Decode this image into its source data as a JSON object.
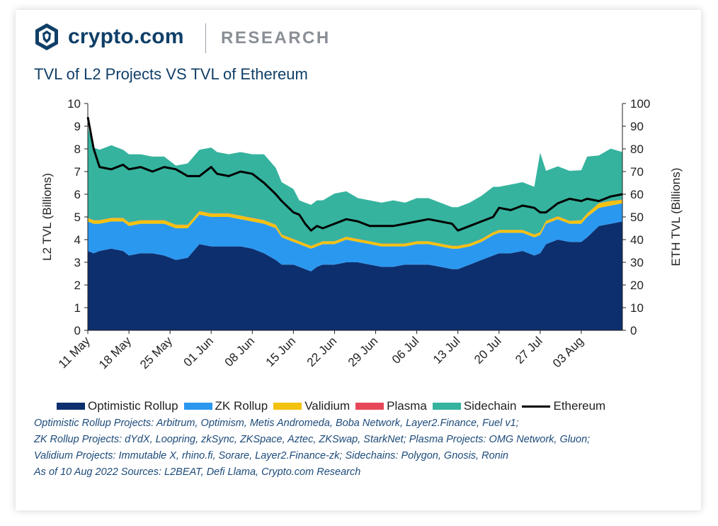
{
  "brand": {
    "name": "crypto.com",
    "section": "RESEARCH"
  },
  "chart_data": {
    "type": "area",
    "title": "TVL of L2 Projects VS TVL of Ethereum",
    "ylabel_left": "L2 TVL (Billions)",
    "ylabel_right": "ETH TVL (Billions)",
    "ylim_left": [
      0,
      10
    ],
    "ylim_right": [
      0,
      100
    ],
    "yticks_left": [
      "0",
      "1",
      "2",
      "3",
      "4",
      "5",
      "6",
      "7",
      "8",
      "9",
      "10"
    ],
    "yticks_right": [
      "0",
      "10",
      "20",
      "30",
      "40",
      "50",
      "60",
      "70",
      "80",
      "90",
      "100"
    ],
    "x_start": "2022-05-11",
    "x_end": "2022-08-10",
    "x_tick_labels": [
      "11 May",
      "18 May",
      "25 May",
      "01 Jun",
      "08 Jun",
      "15 Jun",
      "22 Jun",
      "29 Jun",
      "06 Jul",
      "13 Jul",
      "20 Jul",
      "27 Jul",
      "03 Aug"
    ],
    "dates": [
      "2022-05-11",
      "2022-05-12",
      "2022-05-13",
      "2022-05-15",
      "2022-05-17",
      "2022-05-18",
      "2022-05-20",
      "2022-05-22",
      "2022-05-24",
      "2022-05-26",
      "2022-05-28",
      "2022-05-30",
      "2022-06-01",
      "2022-06-02",
      "2022-06-04",
      "2022-06-06",
      "2022-06-08",
      "2022-06-10",
      "2022-06-12",
      "2022-06-13",
      "2022-06-15",
      "2022-06-16",
      "2022-06-17",
      "2022-06-18",
      "2022-06-19",
      "2022-06-20",
      "2022-06-22",
      "2022-06-24",
      "2022-06-26",
      "2022-06-28",
      "2022-06-30",
      "2022-07-02",
      "2022-07-04",
      "2022-07-06",
      "2022-07-08",
      "2022-07-10",
      "2022-07-12",
      "2022-07-13",
      "2022-07-15",
      "2022-07-17",
      "2022-07-19",
      "2022-07-20",
      "2022-07-22",
      "2022-07-24",
      "2022-07-26",
      "2022-07-27",
      "2022-07-28",
      "2022-07-30",
      "2022-08-01",
      "2022-08-03",
      "2022-08-04",
      "2022-08-06",
      "2022-08-08",
      "2022-08-10"
    ],
    "series": [
      {
        "name": "Optimistic Rollup",
        "color": "#0d2f6e",
        "kind": "stacked",
        "values": [
          3.5,
          3.4,
          3.5,
          3.6,
          3.5,
          3.3,
          3.4,
          3.4,
          3.3,
          3.1,
          3.2,
          3.8,
          3.7,
          3.7,
          3.7,
          3.7,
          3.6,
          3.4,
          3.1,
          2.9,
          2.9,
          2.8,
          2.7,
          2.6,
          2.8,
          2.9,
          2.9,
          3.0,
          3.0,
          2.9,
          2.8,
          2.8,
          2.9,
          2.9,
          2.9,
          2.8,
          2.7,
          2.7,
          2.9,
          3.1,
          3.3,
          3.4,
          3.4,
          3.5,
          3.3,
          3.4,
          3.8,
          4.0,
          3.9,
          3.9,
          4.1,
          4.6,
          4.7,
          4.8
        ]
      },
      {
        "name": "ZK Rollup",
        "color": "#2b98f0",
        "kind": "stacked",
        "values": [
          1.3,
          1.3,
          1.2,
          1.2,
          1.3,
          1.3,
          1.3,
          1.3,
          1.4,
          1.4,
          1.3,
          1.3,
          1.3,
          1.3,
          1.3,
          1.2,
          1.2,
          1.3,
          1.4,
          1.2,
          1.0,
          1.0,
          1.0,
          1.0,
          0.9,
          0.9,
          0.9,
          1.0,
          0.9,
          0.9,
          0.9,
          0.9,
          0.8,
          0.9,
          0.9,
          0.9,
          0.9,
          0.9,
          0.8,
          0.8,
          0.9,
          0.9,
          0.9,
          0.8,
          0.8,
          0.8,
          0.9,
          0.9,
          0.8,
          0.8,
          0.9,
          0.8,
          0.8,
          0.8
        ]
      },
      {
        "name": "Validium",
        "color": "#f3c20f",
        "kind": "stacked",
        "values": [
          0.15,
          0.15,
          0.15,
          0.15,
          0.15,
          0.15,
          0.15,
          0.15,
          0.15,
          0.15,
          0.15,
          0.15,
          0.15,
          0.15,
          0.15,
          0.15,
          0.15,
          0.15,
          0.15,
          0.12,
          0.12,
          0.12,
          0.12,
          0.12,
          0.12,
          0.12,
          0.12,
          0.12,
          0.12,
          0.12,
          0.12,
          0.12,
          0.12,
          0.12,
          0.12,
          0.12,
          0.12,
          0.12,
          0.12,
          0.12,
          0.12,
          0.12,
          0.12,
          0.12,
          0.12,
          0.12,
          0.12,
          0.12,
          0.12,
          0.15,
          0.15,
          0.2,
          0.2,
          0.15
        ]
      },
      {
        "name": "Plasma",
        "color": "#e8475a",
        "kind": "stacked",
        "values": [
          0.01,
          0.01,
          0.01,
          0.01,
          0.01,
          0.01,
          0.01,
          0.01,
          0.01,
          0.01,
          0.01,
          0.01,
          0.01,
          0.01,
          0.01,
          0.01,
          0.01,
          0.01,
          0.01,
          0.01,
          0.01,
          0.01,
          0.01,
          0.01,
          0.01,
          0.01,
          0.01,
          0.01,
          0.01,
          0.01,
          0.01,
          0.01,
          0.01,
          0.01,
          0.01,
          0.01,
          0.01,
          0.01,
          0.01,
          0.01,
          0.01,
          0.01,
          0.01,
          0.01,
          0.01,
          0.01,
          0.01,
          0.01,
          0.01,
          0.01,
          0.01,
          0.01,
          0.01,
          0.01
        ]
      },
      {
        "name": "Sidechain",
        "color": "#35b39e",
        "kind": "stacked",
        "values": [
          4.0,
          3.2,
          3.1,
          3.2,
          3.0,
          3.0,
          2.9,
          2.8,
          2.8,
          2.6,
          2.7,
          2.7,
          2.9,
          2.7,
          2.6,
          2.8,
          2.8,
          2.9,
          2.5,
          2.3,
          2.2,
          1.8,
          1.8,
          1.8,
          1.9,
          1.8,
          2.1,
          2.0,
          1.8,
          1.8,
          1.8,
          1.9,
          1.8,
          1.9,
          1.9,
          1.8,
          1.7,
          1.7,
          1.8,
          1.9,
          2.0,
          1.9,
          2.0,
          2.1,
          2.1,
          3.5,
          2.2,
          2.2,
          2.2,
          2.2,
          2.5,
          2.1,
          2.3,
          2.1
        ]
      },
      {
        "name": "Ethereum",
        "color": "#000000",
        "kind": "line",
        "axis": "right",
        "values": [
          94,
          80,
          72,
          71,
          73,
          71,
          72,
          70,
          72,
          71,
          68,
          68,
          72,
          69,
          68,
          70,
          69,
          65,
          60,
          57,
          52,
          51,
          47,
          44,
          46,
          45,
          47,
          49,
          48,
          46,
          46,
          46,
          47,
          48,
          49,
          48,
          47,
          44,
          46,
          48,
          50,
          54,
          53,
          55,
          54,
          52,
          52,
          56,
          58,
          57,
          58,
          57,
          59,
          60
        ]
      }
    ]
  },
  "notes": [
    "Optimistic Rollup Projects: Arbitrum, Optimism, Metis Andromeda, Boba Network, Layer2.Finance, Fuel v1;",
    "ZK Rollup Projects: dYdX, Loopring, zkSync, ZKSpace, Aztec, ZKSwap, StarkNet;  Plasma Projects: OMG Network, Gluon;",
    "Validium Projects: Immutable X, rhino.fi, Sorare, Layer2.Finance-zk;    Sidechains: Polygon, Gnosis, Ronin",
    "As of 10 Aug 2022      Sources:  L2BEAT, Defi Llama, Crypto.com Research"
  ]
}
